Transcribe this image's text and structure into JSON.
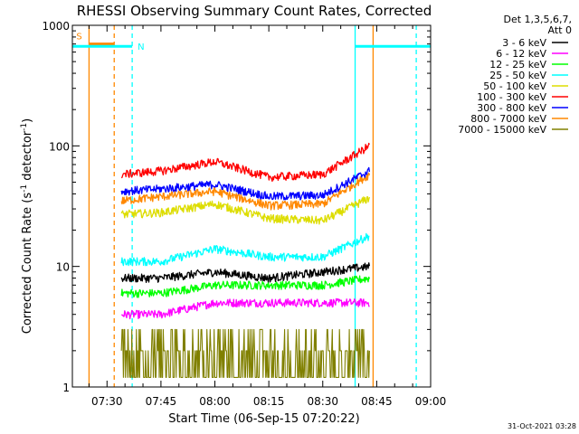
{
  "chart_data": {
    "type": "line",
    "title": "RHESSI Observing Summary Count Rates, Corrected",
    "xlabel": "Start Time (06-Sep-15 07:20:22)",
    "ylabel_main": "Corrected Count Rate (s",
    "ylabel_sup1": "-1",
    "ylabel_mid": " detector",
    "ylabel_sup2": "-1",
    "ylabel_end": ")",
    "y_scale": "log",
    "ylim": [
      1,
      1000
    ],
    "xlim": [
      "07:20:22",
      "09:00"
    ],
    "x_ticks": [
      "07:30",
      "07:45",
      "08:00",
      "08:15",
      "08:30",
      "08:45",
      "09:00"
    ],
    "y_ticks": [
      "1",
      "10",
      "100",
      "1000"
    ],
    "legend_title_1": "Det 1,3,5,6,7,",
    "legend_title_2": "Att 0",
    "legend_placement": "right, outside plot",
    "footer": "31-Oct-2021 03:28",
    "series": [
      {
        "name": "3 - 6 keV",
        "color": "#000000",
        "x": [
          "07:34",
          "07:45",
          "08:00",
          "08:15",
          "08:30",
          "08:43"
        ],
        "values": [
          8,
          8,
          9,
          8,
          9,
          10
        ]
      },
      {
        "name": "6 - 12 keV",
        "color": "#ff00ff",
        "x": [
          "07:34",
          "07:45",
          "08:00",
          "08:15",
          "08:30",
          "08:43"
        ],
        "values": [
          4,
          4,
          5,
          5,
          5,
          5
        ]
      },
      {
        "name": "12 - 25 keV",
        "color": "#00ff00",
        "x": [
          "07:34",
          "07:45",
          "08:00",
          "08:15",
          "08:30",
          "08:43"
        ],
        "values": [
          6,
          6,
          7,
          7,
          7,
          8
        ]
      },
      {
        "name": "25 - 50 keV",
        "color": "#00ffff",
        "x": [
          "07:34",
          "07:45",
          "08:00",
          "08:15",
          "08:30",
          "08:43"
        ],
        "values": [
          11,
          11,
          14,
          12,
          12,
          18
        ]
      },
      {
        "name": "50 - 100 keV",
        "color": "#dddd00",
        "x": [
          "07:34",
          "07:45",
          "08:00",
          "08:15",
          "08:30",
          "08:43"
        ],
        "values": [
          27,
          28,
          33,
          25,
          24,
          37
        ]
      },
      {
        "name": "100 - 300 keV",
        "color": "#ff0000",
        "x": [
          "07:34",
          "07:45",
          "08:00",
          "08:15",
          "08:30",
          "08:43"
        ],
        "values": [
          58,
          62,
          74,
          55,
          58,
          100
        ]
      },
      {
        "name": "300 - 800 keV",
        "color": "#0000ff",
        "x": [
          "07:34",
          "07:45",
          "08:00",
          "08:15",
          "08:30",
          "08:43"
        ],
        "values": [
          42,
          44,
          48,
          38,
          39,
          62
        ]
      },
      {
        "name": "800 - 7000 keV",
        "color": "#ff8800",
        "x": [
          "07:34",
          "07:45",
          "08:00",
          "08:15",
          "08:30",
          "08:43"
        ],
        "values": [
          35,
          38,
          42,
          32,
          33,
          58
        ]
      },
      {
        "name": "7000 - 15000 keV",
        "color": "#808000",
        "x": [
          "07:34",
          "07:45",
          "08:00",
          "08:15",
          "08:30",
          "08:43"
        ],
        "values": [
          1.8,
          2,
          1.9,
          1.8,
          2.1,
          4
        ]
      }
    ],
    "annotations": [
      {
        "label": "S",
        "color": "#ff8800",
        "x": [
          "07:25",
          "07:32"
        ],
        "y": 700,
        "line_style": "solid"
      },
      {
        "label": "N",
        "color": "#00ffff",
        "x": [
          "07:20:22",
          "07:37"
        ],
        "y": 670,
        "line_style": "solid"
      },
      {
        "label": "",
        "color": "#00ffff",
        "x": [
          "08:39",
          "09:00"
        ],
        "y": 670,
        "line_style": "solid"
      }
    ],
    "vertical_markers": [
      {
        "x": "07:25",
        "color": "#ff8800",
        "style": "solid"
      },
      {
        "x": "07:32",
        "color": "#ff8800",
        "style": "dashed"
      },
      {
        "x": "07:37",
        "color": "#00ffff",
        "style": "dashed"
      },
      {
        "x": "08:39",
        "color": "#00ffff",
        "style": "solid"
      },
      {
        "x": "08:44",
        "color": "#ff8800",
        "style": "solid"
      },
      {
        "x": "08:56",
        "color": "#00ffff",
        "style": "dashed"
      }
    ],
    "grid": false
  }
}
